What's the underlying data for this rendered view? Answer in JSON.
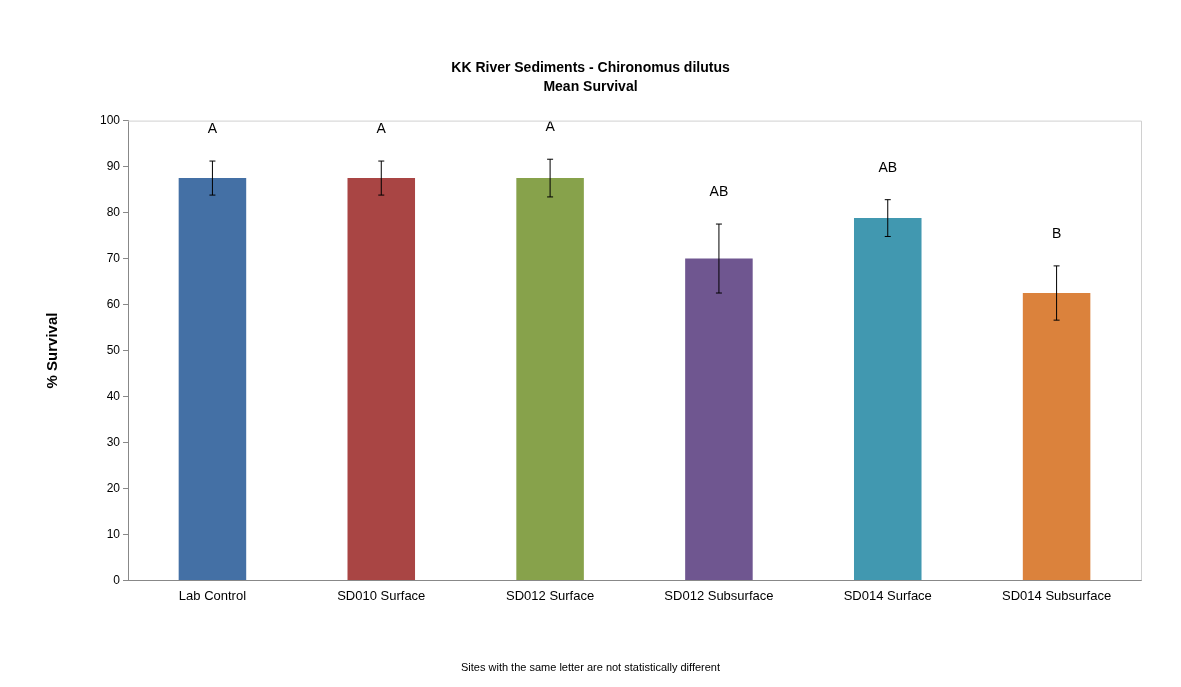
{
  "chart_data": {
    "type": "bar",
    "title": "KK River Sediments - Chironomus dilutus",
    "subtitle": "Mean Survival",
    "ylabel": "% Survival",
    "categories": [
      "Lab Control",
      "SD010 Surface",
      "SD012 Surface",
      "SD012 Subsurface",
      "SD014 Surface",
      "SD014 Subsurface"
    ],
    "values": [
      87.5,
      87.5,
      87.5,
      70,
      78.8,
      62.5
    ],
    "colors": [
      "#4470a5",
      "#a94544",
      "#87a24b",
      "#6f5690",
      "#4198b0",
      "#db823c"
    ],
    "errors": [
      3.7,
      3.7,
      4.1,
      7.5,
      4,
      5.9
    ],
    "ylim": [
      0,
      100
    ],
    "yticks": [
      0,
      10,
      20,
      30,
      40,
      50,
      60,
      70,
      80,
      90,
      100
    ],
    "grid": false,
    "legend": false,
    "annotations": [
      "A",
      "A",
      "A",
      "AB",
      "AB",
      "B",
      "Sites with the same letter are not statistically different"
    ]
  }
}
